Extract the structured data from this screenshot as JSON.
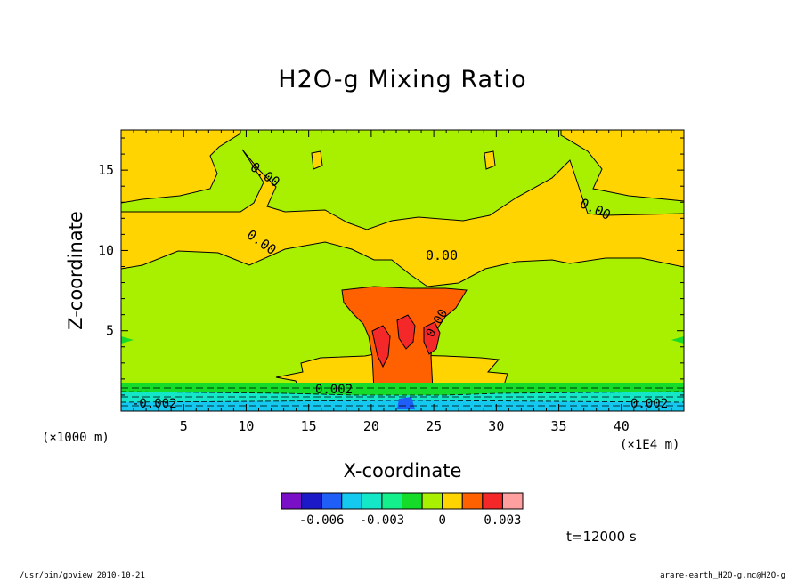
{
  "chart_data": {
    "type": "heatmap",
    "title": "H2O-g Mixing Ratio",
    "xlabel": "X-coordinate",
    "ylabel": "Z-coordinate",
    "x_unit": "(×1E4 m)",
    "y_unit": "(×1000 m)",
    "xlim": [
      0,
      45
    ],
    "ylim": [
      0,
      17.5
    ],
    "x_ticks": [
      5,
      10,
      15,
      20,
      25,
      30,
      35,
      40
    ],
    "y_ticks": [
      5,
      10,
      15
    ],
    "contour_labels": [
      "0.00",
      "0.00",
      "0.00",
      "0.00",
      "0.00",
      "0.002",
      "-0.002",
      "0.002"
    ],
    "colorbar": {
      "colors": [
        "#7a0fc8",
        "#1c19c8",
        "#1f5ff7",
        "#14c8f0",
        "#14e6c8",
        "#14f08c",
        "#14dc28",
        "#a8f000",
        "#ffd400",
        "#ff6000",
        "#f42828",
        "#ffa0a0"
      ],
      "tick_labels": [
        "-0.006",
        "-0.003",
        "0",
        "0.003"
      ]
    },
    "time_label": "t=12000 s"
  },
  "footer": {
    "left": "/usr/bin/gpview   2010-10-21",
    "right": "arare-earth_H2O-g.nc@H2O-g"
  }
}
